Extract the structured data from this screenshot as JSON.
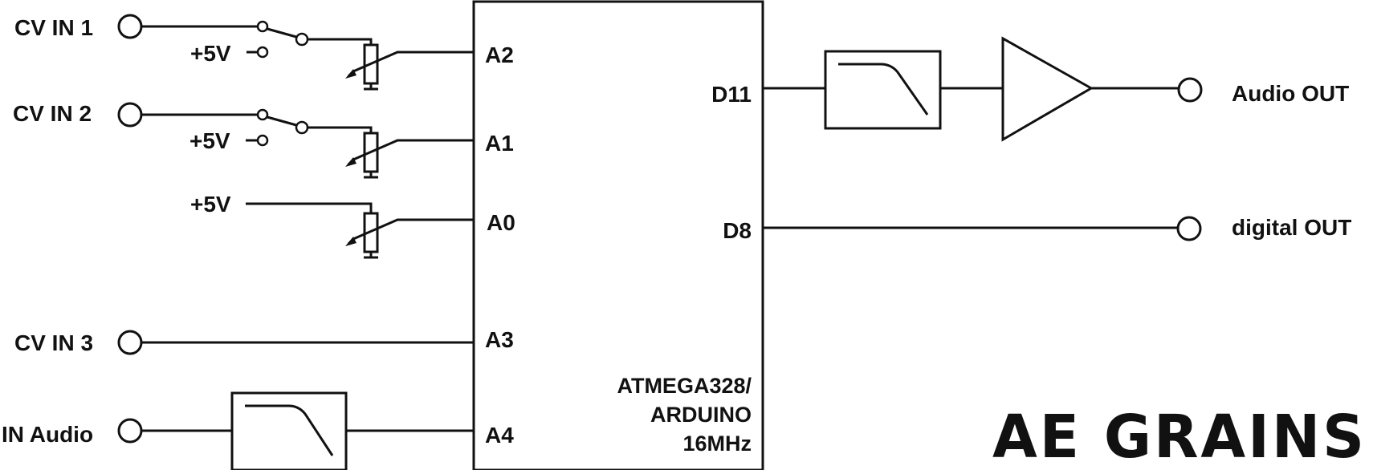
{
  "inputs": {
    "cv1": "CV IN 1",
    "cv2": "CV IN 2",
    "cv3": "CV IN 3",
    "audio_in": "IN Audio",
    "plus5v_1": "+5V",
    "plus5v_2": "+5V",
    "plus5v_3": "+5V"
  },
  "mcu": {
    "name_line1": "ATMEGA328/",
    "name_line2": "ARDUINO",
    "name_line3": "16MHz",
    "pins": {
      "a2": "A2",
      "a1": "A1",
      "a0": "A0",
      "a3": "A3",
      "a4": "A4",
      "d11": "D11",
      "d8": "D8"
    }
  },
  "outputs": {
    "audio_out": "Audio OUT",
    "digital_out": "digital OUT"
  },
  "brand": "AE GRAINS",
  "colors": {
    "line": "#111111",
    "background": "#ffffff"
  }
}
